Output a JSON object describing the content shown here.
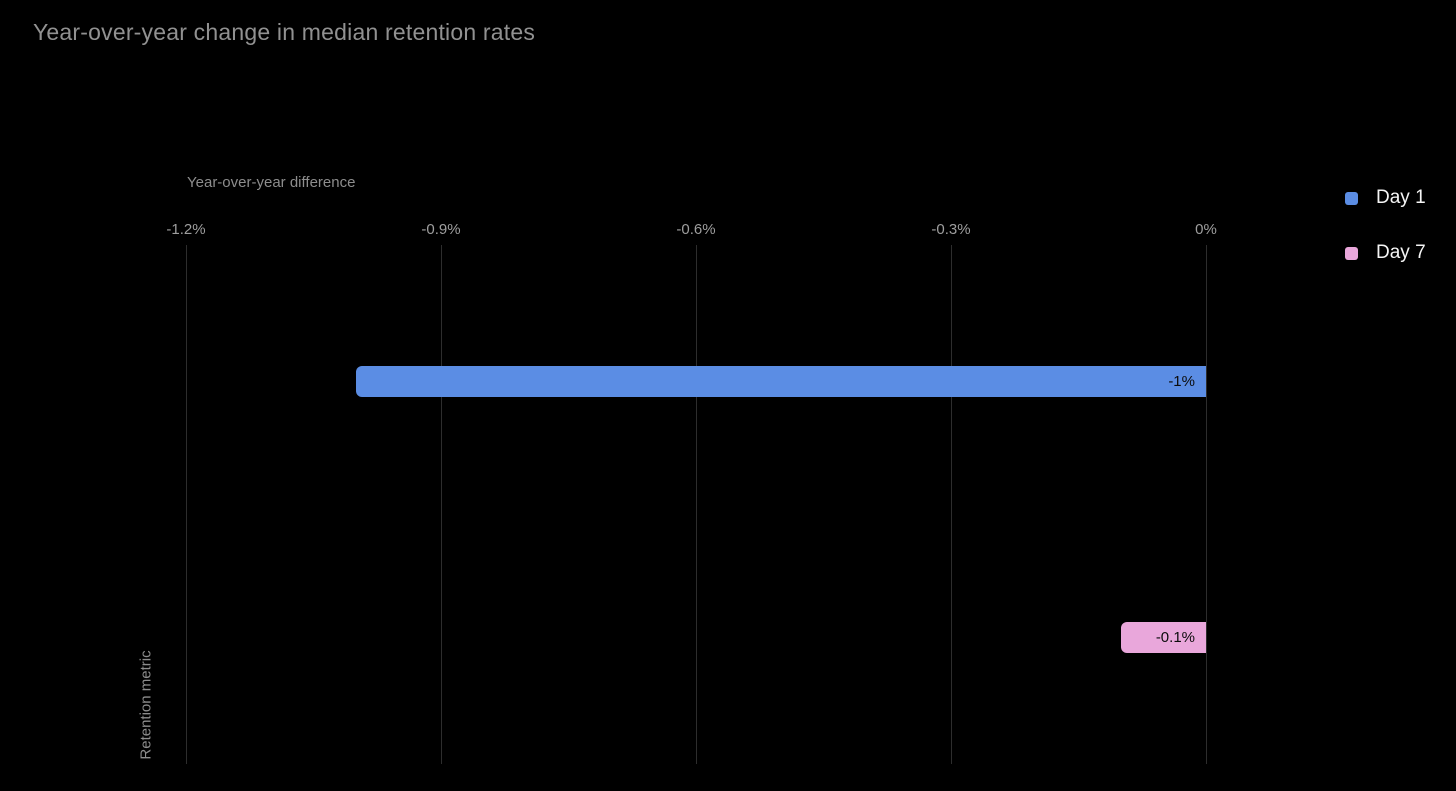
{
  "title": "Year-over-year change in median retention rates",
  "colors": {
    "background": "#000000",
    "title_text": "#919191",
    "axis_text": "#8d8d8d",
    "tick_text": "#9e9e9e",
    "gridline": "#2d2d2d",
    "bar_label_text": "#0c0c0c",
    "legend_text": "#f5f5f5",
    "day1_blue": "#5b8de4",
    "day7_pink": "#e9a7db"
  },
  "chart_data": {
    "type": "bar",
    "orientation": "horizontal",
    "title": "Year-over-year change in median retention rates",
    "xlabel": "Year-over-year difference",
    "ylabel": "Retention metric",
    "xlim": [
      -1.2,
      0
    ],
    "grid": true,
    "legend_position": "right",
    "x_ticks": [
      {
        "value": -1.2,
        "label": "-1.2%"
      },
      {
        "value": -0.9,
        "label": "-0.9%"
      },
      {
        "value": -0.6,
        "label": "-0.6%"
      },
      {
        "value": -0.3,
        "label": "-0.3%"
      },
      {
        "value": 0,
        "label": "0%"
      }
    ],
    "series": [
      {
        "name": "Day 1",
        "value": -1.0,
        "data_label": "-1%",
        "color": "#5b8de4"
      },
      {
        "name": "Day 7",
        "value": -0.1,
        "data_label": "-0.1%",
        "color": "#e9a7db"
      }
    ],
    "legend": [
      {
        "label": "Day 1",
        "color": "#5b8de4"
      },
      {
        "label": "Day 7",
        "color": "#e9a7db"
      }
    ]
  }
}
